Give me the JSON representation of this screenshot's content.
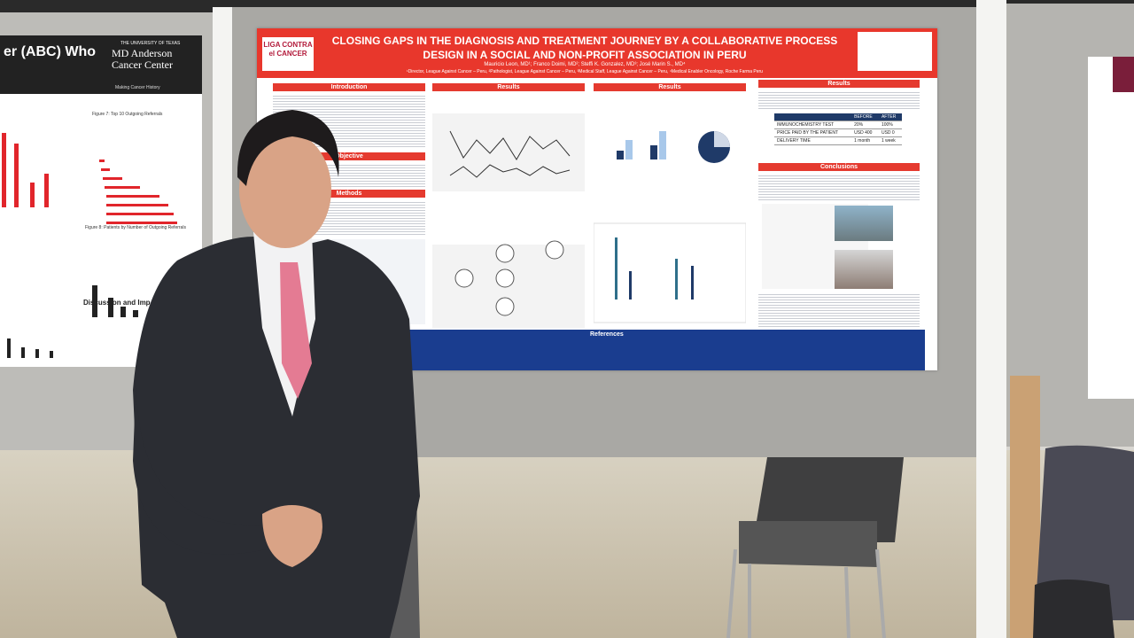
{
  "poster": {
    "logo": "LIGA CONTRA el CANCER",
    "title": "CLOSING GAPS IN THE DIAGNOSIS AND TREATMENT JOURNEY BY A COLLABORATIVE PROCESS DESIGN IN A SOCIAL AND NON-PROFIT ASSOCIATION IN PERU",
    "authors": "Mauricio Leon, MD¹; Franco Doimi, MD²; Steffi K. Gonzalez, MD³; José Marin S., MD⁴",
    "affiliations": "¹Director, League Against Cancer – Peru, ²Pathologist, League Against Cancer – Peru, ³Medical Staff, League Against Cancer – Peru, ⁴Medical Enabler Oncology, Roche Farma Peru",
    "sections": [
      "Introduction",
      "Objective",
      "Methods",
      "Results",
      "Results",
      "Results",
      "Conclusions",
      "References"
    ],
    "table": {
      "header": [
        "BEFORE",
        "AFTER"
      ],
      "rows": [
        [
          "IMMUNOCHEMISTRY TEST",
          "20%",
          "100%"
        ],
        [
          "PRICE PAID BY THE PATIENT",
          "USD 400",
          "USD 0"
        ],
        [
          "DELIVERY TIME",
          "1 month",
          "1 week"
        ]
      ]
    }
  },
  "left_poster": {
    "title": "er (ABC) Who",
    "institution": "THE UNIVERSITY OF TEXAS",
    "logo": "MD Anderson Cancer Center",
    "tagline": "Making Cancer History",
    "figure_7": "Figure 7: Top 10 Outgoing Referrals",
    "figure_8": "Figure 8: Patients by Number of Outgoing Referrals",
    "discussion": "Discussion and Imp"
  }
}
